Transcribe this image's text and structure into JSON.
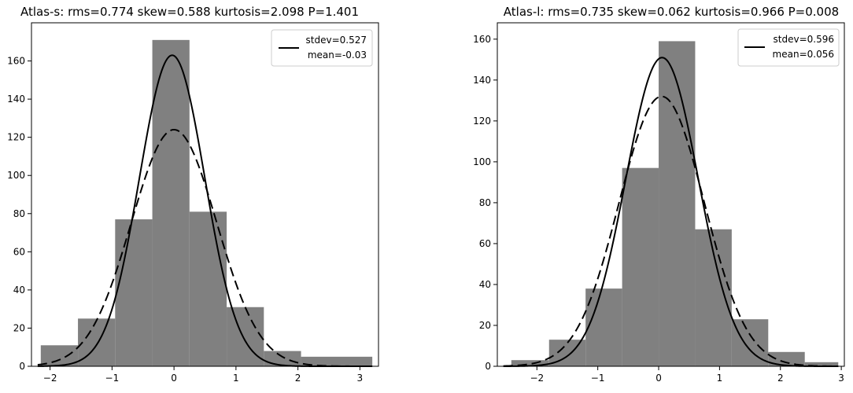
{
  "chart_data": [
    {
      "type": "bar",
      "title": "Atlas-s:   rms=0.774  skew=0.588   kurtosis=2.098   P=1.401",
      "xlabel": "",
      "ylabel": "",
      "xlim": [
        -2.3,
        3.3
      ],
      "ylim": [
        0,
        180
      ],
      "xticks": [
        -2,
        -1,
        0,
        1,
        2,
        3
      ],
      "xtick_labels": [
        "−2",
        "−1",
        "0",
        "1",
        "2",
        "3"
      ],
      "yticks": [
        0,
        20,
        40,
        60,
        80,
        100,
        120,
        140,
        160
      ],
      "ytick_labels": [
        "0",
        "20",
        "40",
        "60",
        "80",
        "100",
        "120",
        "140",
        "160"
      ],
      "bins": [
        {
          "x0": -2.15,
          "x1": -1.55,
          "count": 11
        },
        {
          "x0": -1.55,
          "x1": -0.95,
          "count": 25
        },
        {
          "x0": -0.95,
          "x1": -0.35,
          "count": 77
        },
        {
          "x0": -0.35,
          "x1": 0.25,
          "count": 171
        },
        {
          "x0": 0.25,
          "x1": 0.85,
          "count": 81
        },
        {
          "x0": 0.85,
          "x1": 1.45,
          "count": 31
        },
        {
          "x0": 1.45,
          "x1": 2.05,
          "count": 8
        },
        {
          "x0": 2.05,
          "x1": 3.2,
          "count": 5
        }
      ],
      "bar_color": "#808080",
      "curves": [
        {
          "name": "stdev=0.527",
          "label2": "mean=-0.03",
          "style": "solid",
          "mean": -0.03,
          "peak": 163,
          "stdev": 0.527
        },
        {
          "name": "",
          "style": "dashed",
          "mean": 0.0,
          "peak": 124,
          "stdev": 0.69
        }
      ],
      "legend": {
        "line1": "stdev=0.527",
        "line2": "mean=-0.03",
        "placement": "top-right"
      },
      "grid": false
    },
    {
      "type": "bar",
      "title": "Atlas-l:   rms=0.735  skew=0.062   kurtosis=0.966   P=0.008",
      "xlabel": "",
      "ylabel": "",
      "xlim": [
        -2.65,
        3.05
      ],
      "ylim": [
        0,
        168
      ],
      "xticks": [
        -2,
        -1,
        0,
        1,
        2,
        3
      ],
      "xtick_labels": [
        "−2",
        "−1",
        "0",
        "1",
        "2",
        "3"
      ],
      "yticks": [
        0,
        20,
        40,
        60,
        80,
        100,
        120,
        140,
        160
      ],
      "ytick_labels": [
        "0",
        "20",
        "40",
        "60",
        "80",
        "100",
        "120",
        "140",
        "160"
      ],
      "bins": [
        {
          "x0": -2.42,
          "x1": -1.8,
          "count": 3
        },
        {
          "x0": -1.8,
          "x1": -1.2,
          "count": 13
        },
        {
          "x0": -1.2,
          "x1": -0.6,
          "count": 38
        },
        {
          "x0": -0.6,
          "x1": 0.0,
          "count": 97
        },
        {
          "x0": 0.0,
          "x1": 0.6,
          "count": 159
        },
        {
          "x0": 0.6,
          "x1": 1.2,
          "count": 67
        },
        {
          "x0": 1.2,
          "x1": 1.8,
          "count": 23
        },
        {
          "x0": 1.8,
          "x1": 2.4,
          "count": 7
        },
        {
          "x0": 2.4,
          "x1": 2.95,
          "count": 2
        }
      ],
      "bar_color": "#808080",
      "curves": [
        {
          "name": "stdev=0.596",
          "label2": "mean=0.056",
          "style": "solid",
          "mean": 0.056,
          "peak": 151,
          "stdev": 0.596
        },
        {
          "name": "",
          "style": "dashed",
          "mean": 0.05,
          "peak": 132,
          "stdev": 0.7
        }
      ],
      "legend": {
        "line1": "stdev=0.596",
        "line2": "mean=0.056",
        "placement": "top-right"
      },
      "grid": false
    }
  ]
}
